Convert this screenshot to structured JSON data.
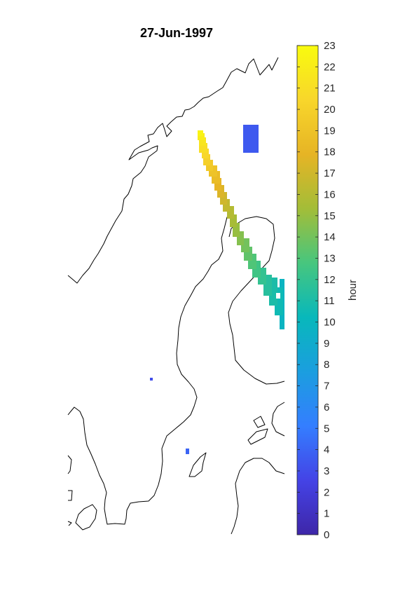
{
  "chart_data": {
    "type": "heatmap",
    "title": "27-Jun-1997",
    "colorbar": {
      "label": "hour",
      "range": [
        0,
        23
      ],
      "ticks": [
        0,
        1,
        2,
        3,
        4,
        5,
        6,
        7,
        8,
        9,
        10,
        11,
        12,
        13,
        14,
        15,
        16,
        17,
        18,
        19,
        20,
        21,
        22,
        23
      ],
      "tick_labels": [
        "0",
        "1",
        "2",
        "3",
        "4",
        "5",
        "6",
        "7",
        "8",
        "9",
        "10",
        "11",
        "12",
        "13",
        "14",
        "15",
        "16",
        "17",
        "18",
        "19",
        "20",
        "21",
        "22",
        "23"
      ],
      "colormap": "parula",
      "colormap_stops": [
        "#3e26a8",
        "#4443e6",
        "#347eff",
        "#1b9edf",
        "#08b8bb",
        "#47c67e",
        "#a3bd38",
        "#e6b425",
        "#f8d62b",
        "#f9fb0e"
      ]
    },
    "coastline_color": "#000000",
    "axes_visible": false,
    "track_by_hour": [
      {
        "hour": 3,
        "note": "isolated pixel"
      },
      {
        "hour": 4,
        "note": "pixels near island"
      },
      {
        "hour": 3.5,
        "note": "northern patch"
      },
      {
        "hour": 9.8
      },
      {
        "hour": 10.5
      },
      {
        "hour": 11
      },
      {
        "hour": 11.5
      },
      {
        "hour": 12
      },
      {
        "hour": 12.5
      },
      {
        "hour": 13
      },
      {
        "hour": 13.5
      },
      {
        "hour": 14
      },
      {
        "hour": 14.5
      },
      {
        "hour": 15
      },
      {
        "hour": 15.5
      },
      {
        "hour": 16
      },
      {
        "hour": 16.5
      },
      {
        "hour": 17
      },
      {
        "hour": 17.5
      },
      {
        "hour": 18
      },
      {
        "hour": 18.5
      },
      {
        "hour": 19
      },
      {
        "hour": 19.5
      },
      {
        "hour": 20
      },
      {
        "hour": 20.5
      },
      {
        "hour": 21
      },
      {
        "hour": 21.5
      },
      {
        "hour": 22
      },
      {
        "hour": 22.5
      }
    ]
  }
}
